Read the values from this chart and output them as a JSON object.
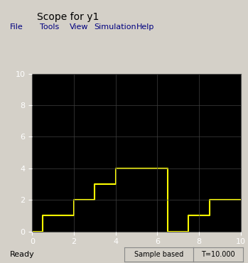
{
  "title": "Scope for y1",
  "window_bg": "#d4d0c8",
  "plot_bg": "#000000",
  "line_color": "#ffff00",
  "line_width": 1.5,
  "xlim": [
    0,
    10
  ],
  "ylim": [
    0,
    10
  ],
  "xticks": [
    0,
    2,
    4,
    6,
    8,
    10
  ],
  "yticks": [
    0,
    2,
    4,
    6,
    8,
    10
  ],
  "grid_color": "#404040",
  "step_x": [
    0,
    0.5,
    0.5,
    2.0,
    2.0,
    3.0,
    3.0,
    4.0,
    4.0,
    6.5,
    6.5,
    7.5,
    7.5,
    8.5,
    8.5,
    10.0
  ],
  "step_y": [
    0,
    0,
    1,
    1,
    2,
    2,
    3,
    3,
    4,
    4,
    0,
    0,
    1,
    1,
    2,
    2
  ],
  "status_bar_text": "Ready",
  "sample_based_text": "Sample based",
  "time_text": "T=10.000",
  "menu_items": [
    "File",
    "Tools",
    "View",
    "Simulation",
    "Help"
  ],
  "figsize": [
    3.49,
    3.7
  ],
  "dpi": 100
}
